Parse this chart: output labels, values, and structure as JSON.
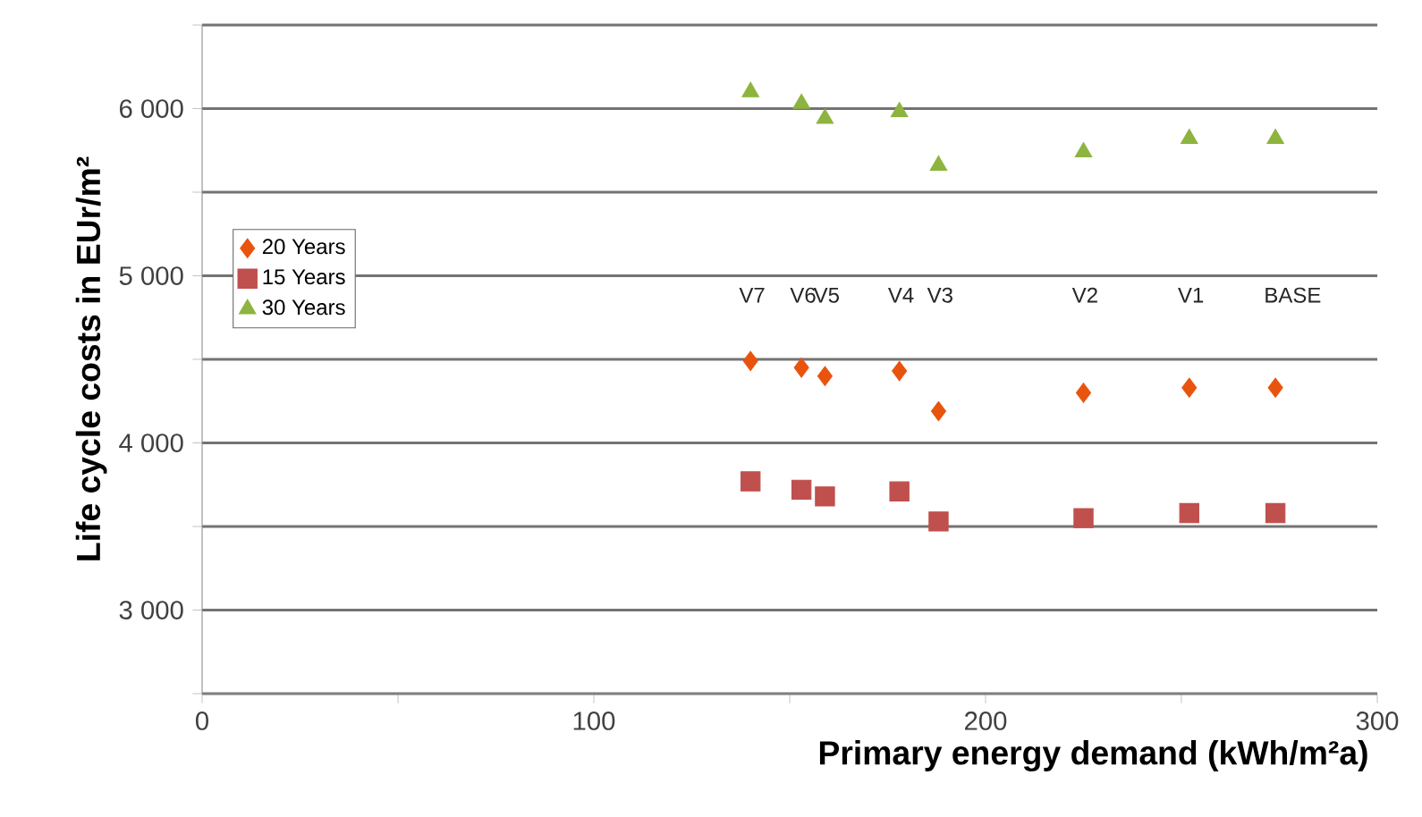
{
  "chart_data": {
    "type": "scatter",
    "xlabel": "Primary energy demand (kWh/m²a)",
    "ylabel": "Life cycle costs in EUr/m²",
    "xlim": [
      0,
      300
    ],
    "ylim": [
      2500,
      6500
    ],
    "xticks": [
      0,
      {
        "value": 50,
        "label": null
      },
      100,
      {
        "value": 150,
        "label": null
      },
      200,
      {
        "value": 250,
        "label": null
      },
      300
    ],
    "yticks": [
      {
        "value": 2500,
        "label": null
      },
      {
        "value": 3000,
        "label": "3 000"
      },
      {
        "value": 3500,
        "label": null
      },
      {
        "value": 4000,
        "label": "4 000"
      },
      {
        "value": 4500,
        "label": null
      },
      {
        "value": 5000,
        "label": "5 000"
      },
      {
        "value": 5500,
        "label": null
      },
      {
        "value": 6000,
        "label": "6 000"
      },
      {
        "value": 6500,
        "label": null
      }
    ],
    "grid": "y",
    "legend": "left",
    "series": [
      {
        "name": "20 Years",
        "color": "#e8540e",
        "marker": "diamond",
        "x": [
          140,
          153,
          159,
          178,
          188,
          225,
          252,
          274
        ],
        "values": [
          4490,
          4450,
          4400,
          4430,
          4190,
          4300,
          4330,
          4330
        ]
      },
      {
        "name": "15 Years",
        "color": "#c0504d",
        "marker": "square",
        "x": [
          140,
          153,
          159,
          178,
          188,
          225,
          252,
          274
        ],
        "values": [
          3770,
          3720,
          3680,
          3710,
          3530,
          3550,
          3580,
          3580
        ]
      },
      {
        "name": "30 Years",
        "color": "#8db43e",
        "marker": "triangle",
        "x": [
          140,
          153,
          159,
          178,
          188,
          225,
          252,
          274
        ],
        "values": [
          6100,
          6030,
          5940,
          5980,
          5660,
          5740,
          5820,
          5820
        ]
      }
    ],
    "annotations": [
      "V7",
      "V6",
      "V5",
      "V4",
      "V3",
      "V2",
      "V1",
      "BASE"
    ]
  }
}
